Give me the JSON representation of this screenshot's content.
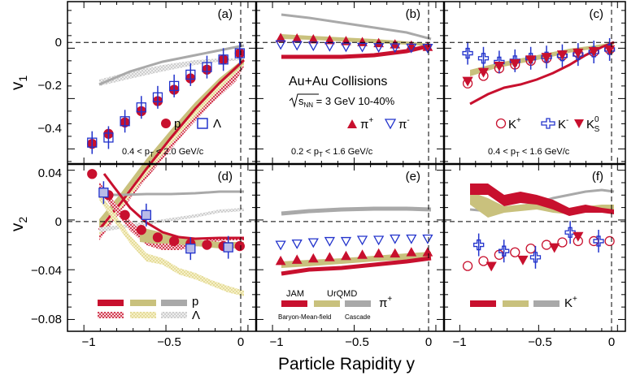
{
  "figure": {
    "x_axis_title": "Particle Rapidity y",
    "y_axis_top": "v",
    "y_axis_top_sub": "1",
    "y_axis_bottom": "v",
    "y_axis_bottom_sub": "2",
    "x_ticks": [
      "−1",
      "−0.5",
      "0"
    ],
    "x_tick_values": [
      -1,
      -0.5,
      0
    ],
    "v1_ticks": [
      "0",
      "−0.2",
      "−0.4"
    ],
    "v1_tick_values": [
      0,
      -0.2,
      -0.4
    ],
    "v2_ticks": [
      "0.04",
      "0",
      "−0.04",
      "−0.08"
    ],
    "v2_tick_values": [
      0.04,
      0,
      -0.04,
      -0.08
    ],
    "collision": "Au+Au Collisions",
    "energy_sqrt": "s",
    "energy_sub": "NN",
    "energy_rest": " = 3 GeV 10-40%",
    "model_jam": "JAM",
    "model_jam_sub": "Baryon-Mean-field",
    "model_urqmd": "UrQMD",
    "model_urqmd_sub": "Cascade",
    "colors": {
      "data": "#c8102e",
      "lambda": "#2233cc",
      "jam": "#c8102e",
      "urqmd": "#c9c17d",
      "cascade": "#a9a9a9"
    }
  },
  "panels": {
    "a": {
      "label": "(a)",
      "range": "0.4 < p",
      "range_sub": "T",
      "range_rest": " < 2.0 GeV/c",
      "leg_p": "p",
      "leg_lambda": "Λ"
    },
    "b": {
      "label": "(b)",
      "range": "0.2 < p",
      "range_sub": "T",
      "range_rest": " < 1.6 GeV/c",
      "leg_pip": "π",
      "leg_pip_sup": "+",
      "leg_pim": "π",
      "leg_pim_sup": "-"
    },
    "c": {
      "label": "(c)",
      "range": "0.4 < p",
      "range_sub": "T",
      "range_rest": " < 1.6 GeV/c",
      "leg_kp": "K",
      "leg_kp_sup": "+",
      "leg_km": "K",
      "leg_km_sup": "-",
      "leg_k0": "K",
      "leg_k0_sup": "0",
      "leg_k0_sub": "S"
    },
    "d": {
      "label": "(d)",
      "leg_p": "p",
      "leg_lambda": "Λ"
    },
    "e": {
      "label": "(e)",
      "leg_pi": "π",
      "leg_pi_sup": "+"
    },
    "f": {
      "label": "(f)",
      "leg_k": "K",
      "leg_k_sup": "+"
    }
  },
  "chart_data": {
    "type": "scatter",
    "xlabel": "Particle Rapidity y",
    "xlim": [
      -1.1,
      0.05
    ],
    "panels": [
      {
        "id": "a",
        "ylabel": "v1",
        "ylim": [
          -0.46,
          0.185
        ],
        "series": [
          {
            "name": "p",
            "x": [
              -0.95,
              -0.85,
              -0.75,
              -0.65,
              -0.55,
              -0.45,
              -0.35,
              -0.25,
              -0.15,
              -0.05
            ],
            "y": [
              -0.38,
              -0.34,
              -0.295,
              -0.25,
              -0.21,
              -0.165,
              -0.12,
              -0.085,
              -0.045,
              -0.02
            ]
          },
          {
            "name": "Λ",
            "x": [
              -0.95,
              -0.85,
              -0.75,
              -0.65,
              -0.55,
              -0.45,
              -0.35,
              -0.25,
              -0.15,
              -0.05
            ],
            "y": [
              -0.375,
              -0.355,
              -0.29,
              -0.235,
              -0.195,
              -0.15,
              -0.105,
              -0.075,
              -0.045,
              -0.02
            ]
          }
        ]
      },
      {
        "id": "b",
        "ylabel": "v1",
        "ylim": [
          -0.46,
          0.185
        ],
        "series": [
          {
            "name": "π+",
            "x": [
              -0.95,
              -0.85,
              -0.75,
              -0.65,
              -0.55,
              -0.45,
              -0.35,
              -0.25,
              -0.15,
              -0.05
            ],
            "y": [
              0.04,
              0.038,
              0.035,
              0.032,
              0.028,
              0.024,
              0.02,
              0.015,
              0.01,
              0.005
            ]
          },
          {
            "name": "π-",
            "x": [
              -0.95,
              -0.85,
              -0.75,
              -0.65,
              -0.55,
              -0.45,
              -0.35,
              -0.25,
              -0.15,
              -0.05
            ],
            "y": [
              0.015,
              0.012,
              0.01,
              0.008,
              0.006,
              0.005,
              0.004,
              0.003,
              0.002,
              0.001
            ]
          }
        ]
      },
      {
        "id": "c",
        "ylabel": "v1",
        "ylim": [
          -0.46,
          0.185
        ],
        "series": [
          {
            "name": "K+",
            "x": [
              -0.95,
              -0.85,
              -0.75,
              -0.65,
              -0.55,
              -0.45,
              -0.35,
              -0.25,
              -0.15,
              -0.05
            ],
            "y": [
              -0.14,
              -0.11,
              -0.08,
              -0.065,
              -0.05,
              -0.04,
              -0.03,
              -0.02,
              -0.015,
              -0.005
            ]
          },
          {
            "name": "K-",
            "x": [
              -0.95,
              -0.85,
              -0.75,
              -0.65,
              -0.55,
              -0.45,
              -0.35,
              -0.25,
              -0.15,
              -0.05
            ],
            "y": [
              -0.02,
              -0.04,
              -0.055,
              -0.05,
              -0.04,
              -0.035,
              -0.03,
              -0.025,
              -0.015,
              -0.005
            ]
          },
          {
            "name": "K0S",
            "x": [
              -0.95,
              -0.85,
              -0.75,
              -0.65,
              -0.55,
              -0.45,
              -0.35,
              -0.25,
              -0.15,
              -0.05
            ],
            "y": [
              -0.13,
              -0.095,
              -0.07,
              -0.06,
              -0.045,
              -0.035,
              -0.025,
              -0.018,
              -0.012,
              -0.005
            ]
          }
        ]
      },
      {
        "id": "d",
        "ylabel": "v2",
        "ylim": [
          -0.0895,
          0.045
        ],
        "series": [
          {
            "name": "p",
            "x": [
              -0.95,
              -0.85,
              -0.75,
              -0.65,
              -0.55,
              -0.45,
              -0.35,
              -0.25,
              -0.15,
              -0.05
            ],
            "y": [
              0.037,
              0.02,
              0.004,
              -0.008,
              -0.014,
              -0.017,
              -0.019,
              -0.02,
              -0.021,
              -0.021
            ]
          },
          {
            "name": "Λ",
            "x": [
              -0.88,
              -0.62,
              -0.35,
              -0.12
            ],
            "y": [
              0.022,
              0.004,
              -0.023,
              -0.022
            ]
          }
        ]
      },
      {
        "id": "e",
        "ylabel": "v2",
        "ylim": [
          -0.0895,
          0.045
        ],
        "series": [
          {
            "name": "π+",
            "x": [
              -0.95,
              -0.85,
              -0.75,
              -0.65,
              -0.55,
              -0.45,
              -0.35,
              -0.25,
              -0.15,
              -0.05
            ],
            "y": [
              -0.033,
              -0.032,
              -0.031,
              -0.03,
              -0.029,
              -0.028,
              -0.027,
              -0.027,
              -0.026,
              -0.026
            ]
          },
          {
            "name": "π-",
            "x": [
              -0.95,
              -0.85,
              -0.75,
              -0.65,
              -0.55,
              -0.45,
              -0.35,
              -0.25,
              -0.15,
              -0.05
            ],
            "y": [
              -0.02,
              -0.019,
              -0.018,
              -0.017,
              -0.017,
              -0.016,
              -0.016,
              -0.015,
              -0.015,
              -0.015
            ]
          }
        ]
      },
      {
        "id": "f",
        "ylabel": "v2",
        "ylim": [
          -0.0895,
          0.045
        ],
        "series": [
          {
            "name": "K+",
            "x": [
              -0.95,
              -0.85,
              -0.75,
              -0.65,
              -0.55,
              -0.45,
              -0.35,
              -0.25,
              -0.15,
              -0.05
            ],
            "y": [
              -0.037,
              -0.033,
              -0.028,
              -0.026,
              -0.023,
              -0.02,
              -0.018,
              -0.017,
              -0.017,
              -0.017
            ]
          },
          {
            "name": "K-",
            "x": [
              -0.88,
              -0.72,
              -0.52,
              -0.3,
              -0.12
            ],
            "y": [
              -0.02,
              -0.025,
              -0.03,
              -0.01,
              -0.017
            ]
          },
          {
            "name": "K0S",
            "x": [
              -0.8,
              -0.6,
              -0.4,
              -0.25
            ],
            "y": [
              -0.037,
              -0.032,
              -0.022,
              -0.013
            ]
          }
        ]
      }
    ]
  }
}
